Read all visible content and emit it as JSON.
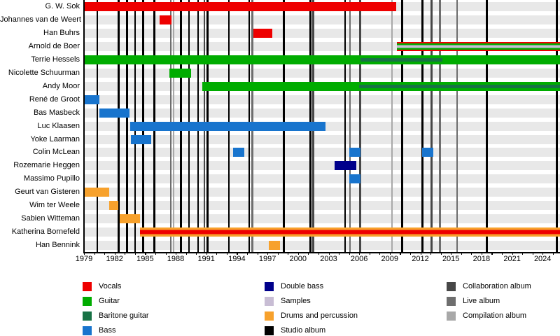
{
  "chart_data": {
    "type": "timeline",
    "title": "",
    "description_visible_text_only": "Band membership timeline with instrument roles and album release markers",
    "x_axis": {
      "min_year": 1979,
      "max_year": 2025.7,
      "tick_label_step": 3,
      "tick_labels": [
        "1979",
        "1982",
        "1985",
        "1988",
        "1991",
        "1994",
        "1997",
        "2000",
        "2003",
        "2006",
        "2009",
        "2012",
        "2015",
        "2018",
        "2021",
        "2024"
      ]
    },
    "colors": {
      "vocals": "#ee0000",
      "guitar": "#00ac00",
      "baritone_guitar": "#177245",
      "bass": "#1874cd",
      "double_bass": "#00008b",
      "samples": "#c8bdd4",
      "drums": "#f7a12c",
      "studio_album": "#000000",
      "collaboration_album": "#474747",
      "live_album": "#6e6e6e",
      "compilation_album": "#a8a8a8",
      "row_stripe": "#e8e8e8"
    },
    "rows": [
      {
        "name": "G. W. Sok",
        "segments": [
          {
            "start": 1979,
            "end": 2009.6,
            "role": "vocals"
          }
        ]
      },
      {
        "name": "Johannes van de Weert",
        "segments": [
          {
            "start": 1986.4,
            "end": 1987.6,
            "role": "vocals"
          }
        ]
      },
      {
        "name": "Han Buhrs",
        "segments": [
          {
            "start": 1995.6,
            "end": 1997.5,
            "role": "vocals"
          }
        ]
      },
      {
        "name": "Arnold de Boer",
        "segments": [
          {
            "start": 2009.7,
            "end": 2025.7,
            "role": "vocals+guitar+samples",
            "stripes": [
              [
                "vocals",
                0.16
              ],
              [
                "guitar",
                0.2
              ],
              [
                "samples",
                0.28
              ],
              [
                "guitar",
                0.2
              ],
              [
                "vocals",
                0.16
              ]
            ]
          }
        ]
      },
      {
        "name": "Terrie Hessels",
        "segments": [
          {
            "start": 1979,
            "end": 2025.7,
            "role": "guitar"
          },
          {
            "start": 2006.1,
            "end": 2014.2,
            "role": "baritone_guitar",
            "overlay": true
          }
        ]
      },
      {
        "name": "Nicolette Schuurman",
        "segments": [
          {
            "start": 1987.4,
            "end": 1989.5,
            "role": "guitar"
          }
        ]
      },
      {
        "name": "Andy Moor",
        "segments": [
          {
            "start": 1990.6,
            "end": 2025.7,
            "role": "guitar"
          },
          {
            "start": 2006.0,
            "end": 2025.7,
            "role": "baritone_guitar",
            "overlay": true
          }
        ]
      },
      {
        "name": "René de Groot",
        "segments": [
          {
            "start": 1979,
            "end": 1980.5,
            "role": "bass"
          }
        ]
      },
      {
        "name": "Bas Masbeck",
        "segments": [
          {
            "start": 1980.5,
            "end": 1983.5,
            "role": "bass"
          }
        ]
      },
      {
        "name": "Luc Klaasen",
        "segments": [
          {
            "start": 1983.5,
            "end": 2002.7,
            "role": "bass"
          }
        ]
      },
      {
        "name": "Yoke Laarman",
        "segments": [
          {
            "start": 1983.6,
            "end": 1985.6,
            "role": "bass"
          }
        ]
      },
      {
        "name": "Colin McLean",
        "segments": [
          {
            "start": 1993.6,
            "end": 1994.7,
            "role": "bass"
          },
          {
            "start": 2005.0,
            "end": 2006.1,
            "role": "bass"
          },
          {
            "start": 2012.2,
            "end": 2013.3,
            "role": "bass"
          }
        ]
      },
      {
        "name": "Rozemarie Heggen",
        "segments": [
          {
            "start": 2003.6,
            "end": 2005.7,
            "role": "double_bass"
          }
        ]
      },
      {
        "name": "Massimo Pupillo",
        "segments": [
          {
            "start": 2005.0,
            "end": 2006.1,
            "role": "bass"
          }
        ]
      },
      {
        "name": "Geurt van Gisteren",
        "segments": [
          {
            "start": 1979,
            "end": 1981.5,
            "role": "drums"
          }
        ]
      },
      {
        "name": "Wim ter Weele",
        "segments": [
          {
            "start": 1981.5,
            "end": 1982.4,
            "role": "drums"
          }
        ]
      },
      {
        "name": "Sabien Witteman",
        "segments": [
          {
            "start": 1982.5,
            "end": 1984.5,
            "role": "drums"
          }
        ]
      },
      {
        "name": "Katherina Bornefeld",
        "segments": [
          {
            "start": 1984.5,
            "end": 2025.7,
            "role": "drums+vocals",
            "stripes": [
              [
                "drums",
                0.28
              ],
              [
                "vocals",
                0.44
              ],
              [
                "drums",
                0.28
              ]
            ]
          }
        ]
      },
      {
        "name": "Han Bennink",
        "segments": [
          {
            "start": 1997.1,
            "end": 1998.2,
            "role": "drums"
          }
        ]
      }
    ],
    "album_lines": [
      {
        "year": 1980.3,
        "type": "studio_album"
      },
      {
        "year": 1982.4,
        "type": "studio_album"
      },
      {
        "year": 1983.2,
        "type": "studio_album"
      },
      {
        "year": 1984.0,
        "type": "studio_album"
      },
      {
        "year": 1984.8,
        "type": "studio_album"
      },
      {
        "year": 1985.9,
        "type": "studio_album"
      },
      {
        "year": 1987.5,
        "type": "live_album"
      },
      {
        "year": 1987.8,
        "type": "compilation_album"
      },
      {
        "year": 1988.5,
        "type": "studio_album"
      },
      {
        "year": 1989.3,
        "type": "studio_album"
      },
      {
        "year": 1990.2,
        "type": "studio_album"
      },
      {
        "year": 1990.8,
        "type": "collaboration_album"
      },
      {
        "year": 1991.1,
        "type": "studio_album"
      },
      {
        "year": 1993.2,
        "type": "studio_album"
      },
      {
        "year": 1995.2,
        "type": "studio_album"
      },
      {
        "year": 1995.5,
        "type": "live_album"
      },
      {
        "year": 1998.6,
        "type": "studio_album"
      },
      {
        "year": 2001.2,
        "type": "studio_album"
      },
      {
        "year": 2001.5,
        "type": "collaboration_album"
      },
      {
        "year": 2004.6,
        "type": "studio_album"
      },
      {
        "year": 2005.1,
        "type": "live_album"
      },
      {
        "year": 2006.1,
        "type": "collaboration_album"
      },
      {
        "year": 2009.2,
        "type": "compilation_album"
      },
      {
        "year": 2010.2,
        "type": "studio_album"
      },
      {
        "year": 2012.2,
        "type": "studio_album"
      },
      {
        "year": 2013.1,
        "type": "collaboration_album"
      },
      {
        "year": 2013.9,
        "type": "live_album"
      },
      {
        "year": 2015.6,
        "type": "live_album"
      },
      {
        "year": 2018.5,
        "type": "studio_album"
      },
      {
        "year": 2025.4,
        "type": "studio_album"
      }
    ],
    "legend": {
      "columns": [
        {
          "items": [
            {
              "label": "Vocals",
              "color_key": "vocals"
            },
            {
              "label": "Guitar",
              "color_key": "guitar"
            },
            {
              "label": "Baritone guitar",
              "color_key": "baritone_guitar"
            },
            {
              "label": "Bass",
              "color_key": "bass"
            }
          ]
        },
        {
          "items": [
            {
              "label": "Double bass",
              "color_key": "double_bass"
            },
            {
              "label": "Samples",
              "color_key": "samples"
            },
            {
              "label": "Drums and percussion",
              "color_key": "drums"
            },
            {
              "label": "Studio album",
              "color_key": "studio_album"
            }
          ]
        },
        {
          "items": [
            {
              "label": "Collaboration album",
              "color_key": "collaboration_album"
            },
            {
              "label": "Live album",
              "color_key": "live_album"
            },
            {
              "label": "Compilation album",
              "color_key": "compilation_album"
            }
          ]
        }
      ]
    }
  }
}
